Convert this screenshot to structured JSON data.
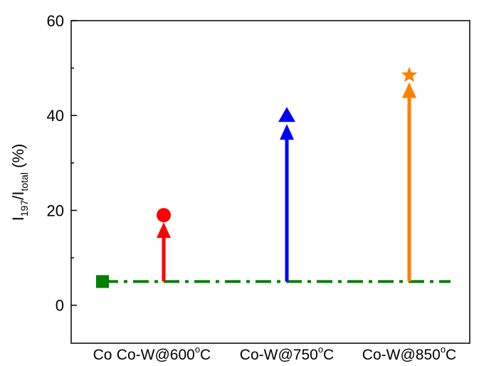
{
  "chart_data": {
    "type": "scatter",
    "title": "",
    "xlabel": "",
    "ylabel": {
      "main": "I",
      "sub1": "197",
      "slash": "/I",
      "sub2": "total",
      "unit": " (%)"
    },
    "ylim": [
      -8,
      60
    ],
    "yticks": [
      0,
      20,
      40,
      60
    ],
    "grid": false,
    "baseline": {
      "value": 5,
      "color": "#007f00",
      "style": "dash-dot",
      "marker": "square"
    },
    "categories": [
      {
        "base": "Co",
        "temp": "",
        "deg": "",
        "unit": ""
      },
      {
        "base": "Co-W",
        "temp": "@600",
        "deg": "o",
        "unit": "C"
      },
      {
        "base": "Co-W",
        "temp": "@750",
        "deg": "o",
        "unit": "C"
      },
      {
        "base": "Co-W",
        "temp": "@850",
        "deg": "o",
        "unit": "C"
      }
    ],
    "series": [
      {
        "category_index": 0,
        "value": 5,
        "marker": "square",
        "color": "#007f00",
        "arrow_from": null
      },
      {
        "category_index": 1,
        "value": 19,
        "marker": "circle",
        "color": "#ff0000",
        "arrow_from": 5
      },
      {
        "category_index": 2,
        "value": 40,
        "marker": "triangle",
        "color": "#0000ff",
        "arrow_from": 5
      },
      {
        "category_index": 3,
        "value": 48.5,
        "marker": "star",
        "color": "#ff8000",
        "arrow_from": 5
      }
    ]
  }
}
